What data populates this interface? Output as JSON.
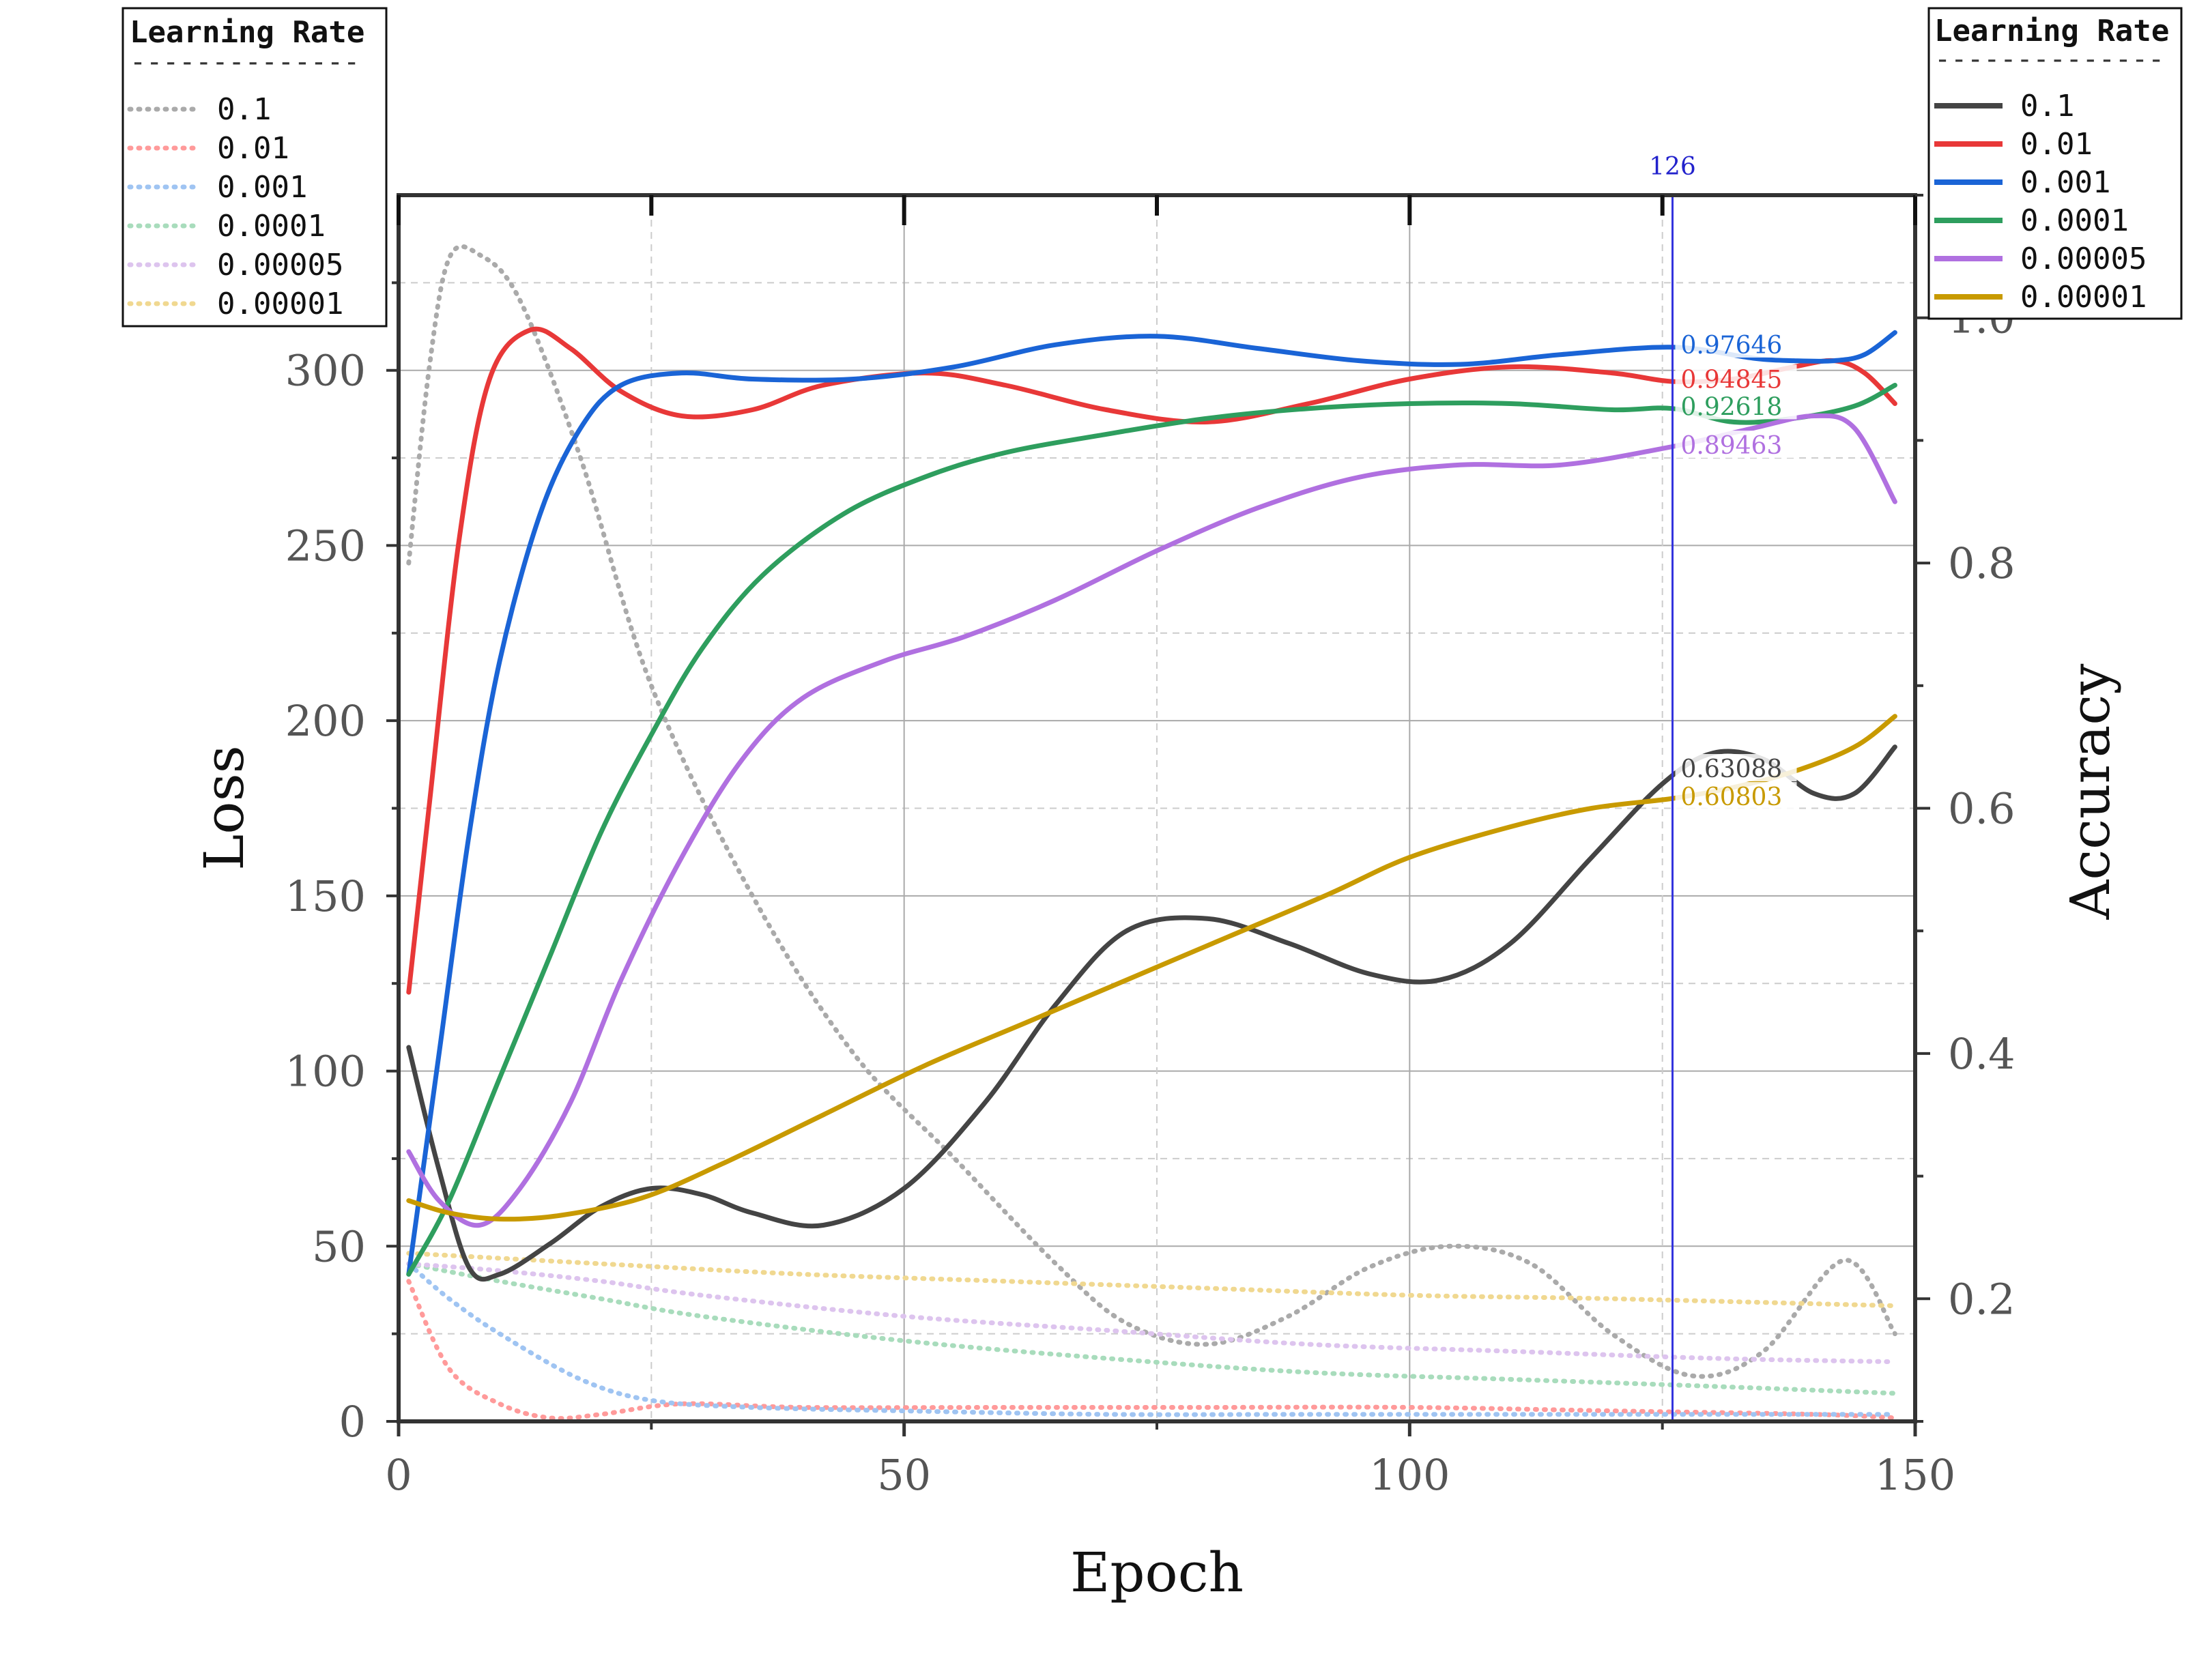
{
  "chart_data": {
    "type": "line",
    "xlabel": "Epoch",
    "ylabel_left": "Loss",
    "ylabel_right": "Accuracy",
    "xlim": [
      0,
      150
    ],
    "ylim_left": [
      0,
      350
    ],
    "ylim_right": [
      0.1,
      1.1
    ],
    "x_ticks": [
      "0",
      "50",
      "100",
      "150"
    ],
    "y_left_ticks": [
      "0",
      "50",
      "100",
      "150",
      "200",
      "250",
      "300"
    ],
    "y_right_ticks": [
      "0.2",
      "0.4",
      "0.6",
      "0.8",
      "1.0"
    ],
    "grid": true,
    "legend_loss": {
      "title": "Learning Rate",
      "separator": "--------------",
      "placement": "top-left",
      "entries": [
        "0.1",
        "0.01",
        "0.001",
        "0.0001",
        "0.00005",
        "0.00001"
      ]
    },
    "legend_accuracy": {
      "title": "Learning Rate",
      "separator": "--------------",
      "placement": "top-right",
      "entries": [
        "0.1",
        "0.01",
        "0.001",
        "0.0001",
        "0.00005",
        "0.00001"
      ]
    },
    "cursor": {
      "x": 126,
      "label": "126"
    },
    "loss_series": [
      {
        "name": "0.1",
        "color": "#aaaaaa",
        "points": [
          [
            1,
            245
          ],
          [
            3,
            300
          ],
          [
            5,
            332
          ],
          [
            8,
            333
          ],
          [
            12,
            320
          ],
          [
            18,
            275
          ],
          [
            25,
            210
          ],
          [
            35,
            150
          ],
          [
            45,
            105
          ],
          [
            55,
            75
          ],
          [
            65,
            45
          ],
          [
            72,
            28
          ],
          [
            80,
            22
          ],
          [
            88,
            30
          ],
          [
            96,
            44
          ],
          [
            104,
            50
          ],
          [
            112,
            45
          ],
          [
            120,
            25
          ],
          [
            128,
            13
          ],
          [
            135,
            20
          ],
          [
            143,
            46
          ],
          [
            148,
            25
          ]
        ]
      },
      {
        "name": "0.01",
        "color": "#ff9a9a",
        "points": [
          [
            1,
            40
          ],
          [
            5,
            15
          ],
          [
            10,
            5
          ],
          [
            15,
            1
          ],
          [
            20,
            2
          ],
          [
            28,
            5
          ],
          [
            40,
            4
          ],
          [
            60,
            4
          ],
          [
            80,
            4
          ],
          [
            100,
            4
          ],
          [
            120,
            3
          ],
          [
            140,
            2
          ],
          [
            148,
            1
          ]
        ]
      },
      {
        "name": "0.001",
        "color": "#9fc4f2",
        "points": [
          [
            1,
            45
          ],
          [
            5,
            35
          ],
          [
            10,
            25
          ],
          [
            18,
            12
          ],
          [
            25,
            6
          ],
          [
            35,
            4
          ],
          [
            50,
            3
          ],
          [
            70,
            2
          ],
          [
            90,
            2
          ],
          [
            110,
            2
          ],
          [
            130,
            2
          ],
          [
            148,
            2
          ]
        ]
      },
      {
        "name": "0.0001",
        "color": "#a8dcbc",
        "points": [
          [
            1,
            45
          ],
          [
            10,
            40
          ],
          [
            20,
            35
          ],
          [
            30,
            30
          ],
          [
            50,
            23
          ],
          [
            70,
            18
          ],
          [
            90,
            14
          ],
          [
            110,
            12
          ],
          [
            130,
            10
          ],
          [
            148,
            8
          ]
        ]
      },
      {
        "name": "0.00005",
        "color": "#ddc4ee",
        "points": [
          [
            1,
            45
          ],
          [
            10,
            43
          ],
          [
            20,
            40
          ],
          [
            30,
            36
          ],
          [
            50,
            30
          ],
          [
            70,
            26
          ],
          [
            90,
            22
          ],
          [
            110,
            20
          ],
          [
            130,
            18
          ],
          [
            148,
            17
          ]
        ]
      },
      {
        "name": "0.00001",
        "color": "#f0d890",
        "points": [
          [
            1,
            48
          ],
          [
            20,
            45
          ],
          [
            40,
            42
          ],
          [
            60,
            40
          ],
          [
            80,
            38
          ],
          [
            100,
            36
          ],
          [
            120,
            35
          ],
          [
            148,
            33
          ]
        ]
      }
    ],
    "accuracy_series": [
      {
        "name": "0.1",
        "color": "#444444",
        "points": [
          [
            1,
            0.405
          ],
          [
            4,
            0.305
          ],
          [
            7,
            0.225
          ],
          [
            10,
            0.22
          ],
          [
            15,
            0.245
          ],
          [
            20,
            0.275
          ],
          [
            25,
            0.29
          ],
          [
            30,
            0.285
          ],
          [
            35,
            0.27
          ],
          [
            42,
            0.26
          ],
          [
            50,
            0.29
          ],
          [
            58,
            0.36
          ],
          [
            65,
            0.44
          ],
          [
            72,
            0.5
          ],
          [
            80,
            0.51
          ],
          [
            88,
            0.49
          ],
          [
            96,
            0.465
          ],
          [
            103,
            0.46
          ],
          [
            110,
            0.49
          ],
          [
            118,
            0.56
          ],
          [
            125,
            0.62
          ],
          [
            130,
            0.645
          ],
          [
            135,
            0.64
          ],
          [
            140,
            0.612
          ],
          [
            144,
            0.612
          ],
          [
            148,
            0.65
          ]
        ]
      },
      {
        "name": "0.01",
        "color": "#e83838",
        "points": [
          [
            1,
            0.45
          ],
          [
            3,
            0.6
          ],
          [
            6,
            0.82
          ],
          [
            9,
            0.95
          ],
          [
            13,
            0.99
          ],
          [
            17,
            0.975
          ],
          [
            22,
            0.94
          ],
          [
            28,
            0.92
          ],
          [
            35,
            0.925
          ],
          [
            42,
            0.945
          ],
          [
            52,
            0.955
          ],
          [
            60,
            0.945
          ],
          [
            70,
            0.925
          ],
          [
            80,
            0.915
          ],
          [
            90,
            0.93
          ],
          [
            100,
            0.95
          ],
          [
            110,
            0.96
          ],
          [
            120,
            0.955
          ],
          [
            126,
            0.948
          ],
          [
            132,
            0.95
          ],
          [
            138,
            0.96
          ],
          [
            142,
            0.965
          ],
          [
            145,
            0.955
          ],
          [
            148,
            0.93
          ]
        ]
      },
      {
        "name": "0.001",
        "color": "#1a64d6",
        "points": [
          [
            1,
            0.22
          ],
          [
            4,
            0.4
          ],
          [
            7,
            0.58
          ],
          [
            10,
            0.72
          ],
          [
            14,
            0.84
          ],
          [
            18,
            0.91
          ],
          [
            22,
            0.945
          ],
          [
            28,
            0.955
          ],
          [
            35,
            0.95
          ],
          [
            45,
            0.95
          ],
          [
            55,
            0.96
          ],
          [
            65,
            0.978
          ],
          [
            75,
            0.985
          ],
          [
            85,
            0.975
          ],
          [
            95,
            0.965
          ],
          [
            105,
            0.962
          ],
          [
            115,
            0.97
          ],
          [
            126,
            0.976
          ],
          [
            134,
            0.967
          ],
          [
            138,
            0.965
          ],
          [
            142,
            0.965
          ],
          [
            145,
            0.97
          ],
          [
            148,
            0.988
          ]
        ]
      },
      {
        "name": "0.0001",
        "color": "#2e9e5e",
        "points": [
          [
            1,
            0.22
          ],
          [
            5,
            0.28
          ],
          [
            10,
            0.38
          ],
          [
            15,
            0.48
          ],
          [
            20,
            0.58
          ],
          [
            25,
            0.66
          ],
          [
            30,
            0.73
          ],
          [
            36,
            0.79
          ],
          [
            44,
            0.84
          ],
          [
            52,
            0.87
          ],
          [
            60,
            0.89
          ],
          [
            70,
            0.905
          ],
          [
            80,
            0.918
          ],
          [
            90,
            0.926
          ],
          [
            100,
            0.93
          ],
          [
            110,
            0.93
          ],
          [
            120,
            0.925
          ],
          [
            126,
            0.926
          ],
          [
            132,
            0.915
          ],
          [
            138,
            0.918
          ],
          [
            144,
            0.928
          ],
          [
            148,
            0.945
          ]
        ]
      },
      {
        "name": "0.00005",
        "color": "#b070e0",
        "points": [
          [
            1,
            0.32
          ],
          [
            4,
            0.28
          ],
          [
            8,
            0.26
          ],
          [
            12,
            0.29
          ],
          [
            17,
            0.36
          ],
          [
            22,
            0.46
          ],
          [
            28,
            0.56
          ],
          [
            34,
            0.64
          ],
          [
            40,
            0.69
          ],
          [
            48,
            0.72
          ],
          [
            56,
            0.74
          ],
          [
            65,
            0.77
          ],
          [
            75,
            0.81
          ],
          [
            85,
            0.845
          ],
          [
            95,
            0.87
          ],
          [
            105,
            0.88
          ],
          [
            115,
            0.88
          ],
          [
            126,
            0.895
          ],
          [
            134,
            0.91
          ],
          [
            140,
            0.92
          ],
          [
            144,
            0.91
          ],
          [
            148,
            0.85
          ]
        ]
      },
      {
        "name": "0.00001",
        "color": "#c89a00",
        "points": [
          [
            1,
            0.28
          ],
          [
            5,
            0.27
          ],
          [
            10,
            0.265
          ],
          [
            16,
            0.268
          ],
          [
            24,
            0.282
          ],
          [
            32,
            0.31
          ],
          [
            42,
            0.35
          ],
          [
            52,
            0.39
          ],
          [
            62,
            0.425
          ],
          [
            72,
            0.46
          ],
          [
            82,
            0.495
          ],
          [
            92,
            0.53
          ],
          [
            100,
            0.56
          ],
          [
            110,
            0.585
          ],
          [
            118,
            0.6
          ],
          [
            126,
            0.608
          ],
          [
            132,
            0.617
          ],
          [
            138,
            0.63
          ],
          [
            144,
            0.65
          ],
          [
            148,
            0.675
          ]
        ]
      }
    ],
    "annotations": [
      {
        "label": "0.97646",
        "value": 0.97646,
        "color": "#1a64d6"
      },
      {
        "label": "0.94845",
        "value": 0.94845,
        "color": "#e83838"
      },
      {
        "label": "0.92618",
        "value": 0.92618,
        "color": "#2e9e5e"
      },
      {
        "label": "0.89463",
        "value": 0.89463,
        "color": "#b070e0"
      },
      {
        "label": "0.63088",
        "value": 0.63088,
        "color": "#444444"
      },
      {
        "label": "0.60803",
        "value": 0.60803,
        "color": "#c89a00"
      }
    ]
  }
}
